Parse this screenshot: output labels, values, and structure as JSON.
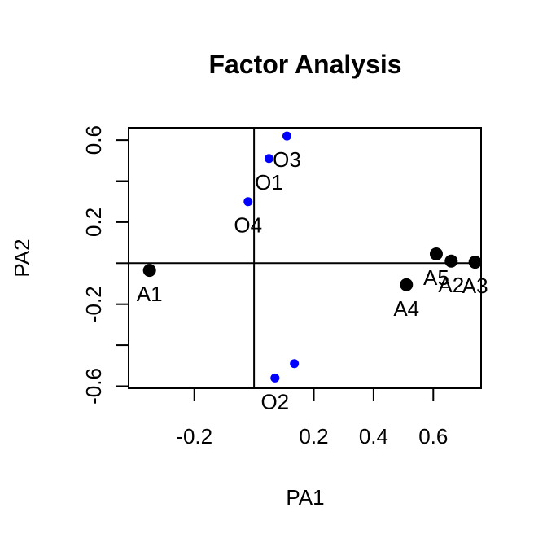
{
  "chart_data": {
    "type": "scatter",
    "title": "Factor Analysis",
    "xlabel": "PA1",
    "ylabel": "PA2",
    "xlim": [
      -0.42,
      0.76
    ],
    "ylim": [
      -0.61,
      0.66
    ],
    "xticks": [
      -0.2,
      0.2,
      0.4,
      0.6
    ],
    "xtick_labels": [
      "-0.2",
      "0.2",
      "0.4",
      "0.6"
    ],
    "yticks": [
      -0.6,
      -0.4,
      -0.2,
      0.0,
      0.2,
      0.4,
      0.6
    ],
    "ytick_labels": [
      "-0.6",
      "",
      "-0.2",
      "",
      "0.2",
      "",
      "0.6"
    ],
    "reference_lines": {
      "x": 0,
      "y": 0
    },
    "series": [
      {
        "color": "#000000",
        "marker_size": "large",
        "points": [
          {
            "label": "A1",
            "x": -0.35,
            "y": -0.035
          },
          {
            "label": "A2",
            "x": 0.66,
            "y": 0.01
          },
          {
            "label": "A3",
            "x": 0.74,
            "y": 0.005
          },
          {
            "label": "A4",
            "x": 0.51,
            "y": -0.105
          },
          {
            "label": "A5",
            "x": 0.61,
            "y": 0.045
          }
        ]
      },
      {
        "color": "#0000ff",
        "marker_size": "small",
        "points": [
          {
            "label": "O1",
            "x": 0.05,
            "y": 0.51
          },
          {
            "label": "O2",
            "x": 0.07,
            "y": -0.56
          },
          {
            "label": "O3",
            "x": 0.11,
            "y": 0.62
          },
          {
            "label": "O4",
            "x": -0.02,
            "y": 0.3
          },
          {
            "label": "",
            "x": 0.135,
            "y": -0.49
          }
        ]
      }
    ]
  }
}
